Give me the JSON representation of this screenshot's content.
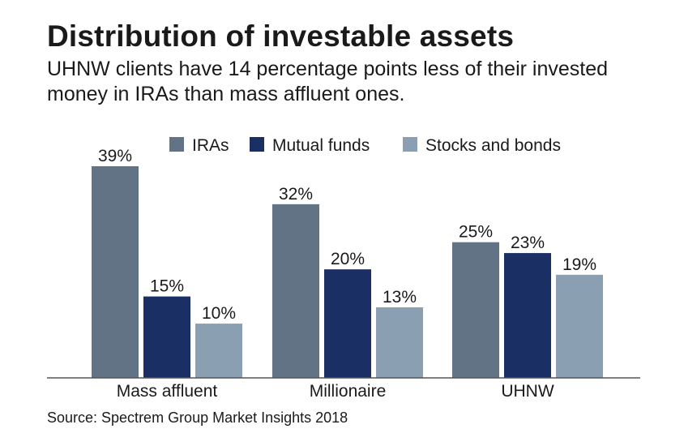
{
  "chart_data": {
    "type": "bar",
    "title": "Distribution of investable assets",
    "subtitle": "UHNW clients have 14 percentage points less of their invested money in IRAs than mass affluent ones.",
    "categories": [
      "Mass affluent",
      "Millionaire",
      "UHNW"
    ],
    "series": [
      {
        "name": "IRAs",
        "values": [
          39,
          32,
          25
        ],
        "color": "#627385"
      },
      {
        "name": "Mutual funds",
        "values": [
          15,
          20,
          23
        ],
        "color": "#1a2f63"
      },
      {
        "name": "Stocks and bonds",
        "values": [
          10,
          13,
          19
        ],
        "color": "#8b9fb2"
      }
    ],
    "value_suffix": "%",
    "ylim": [
      0,
      39
    ],
    "xlabel": "",
    "ylabel": "",
    "grid": false,
    "legend_position": "top",
    "source": "Source: Spectrem Group Market Insights 2018"
  }
}
